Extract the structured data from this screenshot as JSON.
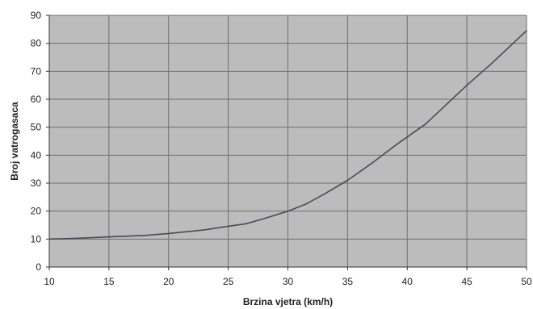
{
  "chart_data": {
    "type": "line",
    "title": "",
    "xlabel": "Brzina vjetra (km/h)",
    "ylabel": "Broj vatrogasaca",
    "xlim": [
      10,
      50
    ],
    "ylim": [
      0,
      90
    ],
    "xticks": [
      10,
      15,
      20,
      25,
      30,
      35,
      40,
      45,
      50
    ],
    "yticks": [
      0,
      10,
      20,
      30,
      40,
      50,
      60,
      70,
      80,
      90
    ],
    "grid": true,
    "legend": "none",
    "colors": {
      "plot_background": "#bcbcbc",
      "grid": "#6e6e6e",
      "line": "#4a4a5a"
    },
    "series": [
      {
        "x": [
          10,
          12,
          15,
          18,
          20,
          23,
          25,
          26.5,
          28,
          30,
          31.5,
          33,
          35,
          37,
          39,
          41.5,
          43,
          45,
          47,
          50
        ],
        "y": [
          10,
          10.2,
          10.8,
          11.3,
          12,
          13.3,
          14.6,
          15.5,
          17.3,
          20,
          22.5,
          26,
          31,
          37,
          43.5,
          51,
          57,
          65,
          72.5,
          84.5
        ]
      }
    ]
  }
}
